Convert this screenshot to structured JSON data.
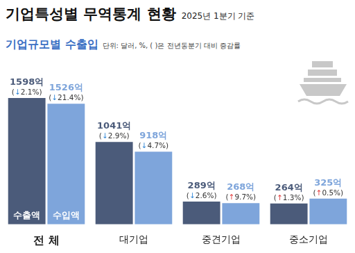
{
  "header": {
    "title": "기업특성별 무역통계 현황",
    "subtitle": "2025년 1분기 기준"
  },
  "chart_data": {
    "type": "bar",
    "title": "기업규모별 수출입",
    "subtitle": "단위: 달러, %, ( )은 전년동분기 대비 증감률",
    "categories": [
      "전 체",
      "대기업",
      "중견기업",
      "중소기업"
    ],
    "series": [
      {
        "name": "수출액",
        "color": "#4b5b7a",
        "values": [
          1598,
          1041,
          289,
          264
        ],
        "value_labels": [
          "1598억",
          "1041억",
          "289억",
          "264억"
        ],
        "changes": [
          -2.1,
          -2.9,
          -2.6,
          1.3
        ],
        "change_labels": [
          "(↓2.1%)",
          "(↓2.9%)",
          "(↓2.6%)",
          "(↑1.3%)"
        ]
      },
      {
        "name": "수입액",
        "color": "#7ea5db",
        "values": [
          1526,
          918,
          268,
          325
        ],
        "value_labels": [
          "1526억",
          "918억",
          "268억",
          "325억"
        ],
        "changes": [
          -21.4,
          -4.7,
          9.7,
          0.5
        ],
        "change_labels": [
          "(↓21.4%)",
          "(↓4.7%)",
          "(↑9.7%)",
          "(↑0.5%)"
        ]
      }
    ],
    "ylim": [
      0,
      1800
    ],
    "yticks": [
      0,
      1800
    ],
    "grid": false,
    "data_labels": true,
    "tick_labels": "x"
  }
}
